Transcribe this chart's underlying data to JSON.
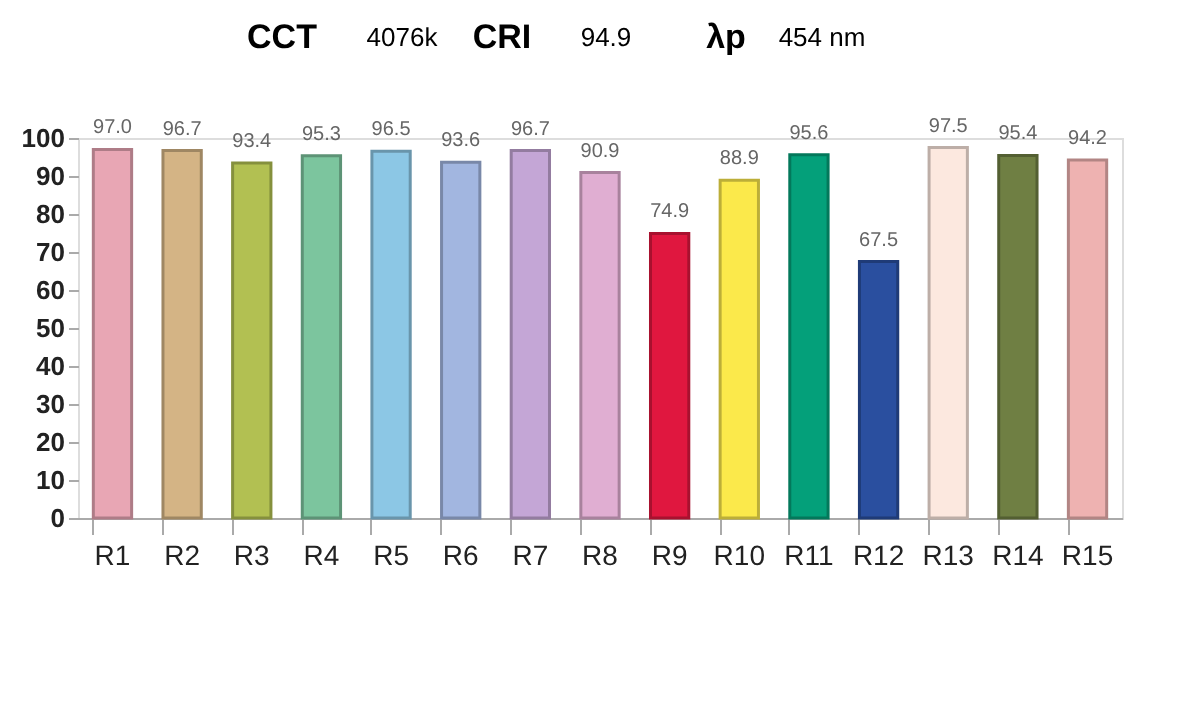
{
  "chart_data": {
    "type": "bar",
    "categories": [
      "R1",
      "R2",
      "R3",
      "R4",
      "R5",
      "R6",
      "R7",
      "R8",
      "R9",
      "R10",
      "R11",
      "R12",
      "R13",
      "R14",
      "R15"
    ],
    "values": [
      97.0,
      96.7,
      93.4,
      95.3,
      96.5,
      93.6,
      96.7,
      90.9,
      74.9,
      88.9,
      95.6,
      67.5,
      97.5,
      95.4,
      94.2
    ],
    "colors": [
      "#e8a6b4",
      "#d4b485",
      "#b2c052",
      "#7cc59e",
      "#8cc7e5",
      "#a2b6e0",
      "#c4a6d6",
      "#e0aed2",
      "#e0173f",
      "#fbe94b",
      "#04a07a",
      "#2a4f9f",
      "#fce8df",
      "#6f7f43",
      "#eeb2b1"
    ],
    "value_labels": [
      "97.0",
      "96.7",
      "93.4",
      "95.3",
      "96.5",
      "93.6",
      "96.7",
      "90.9",
      "74.9",
      "88.9",
      "95.6",
      "67.5",
      "97.5",
      "95.4",
      "94.2"
    ],
    "ylim": [
      0,
      100
    ],
    "yticks": [
      0,
      10,
      20,
      30,
      40,
      50,
      60,
      70,
      80,
      90,
      100
    ],
    "grid": false,
    "annotations": [
      "CCT",
      "4076k",
      "CRI",
      "94.9",
      "λp",
      "454 nm"
    ]
  }
}
